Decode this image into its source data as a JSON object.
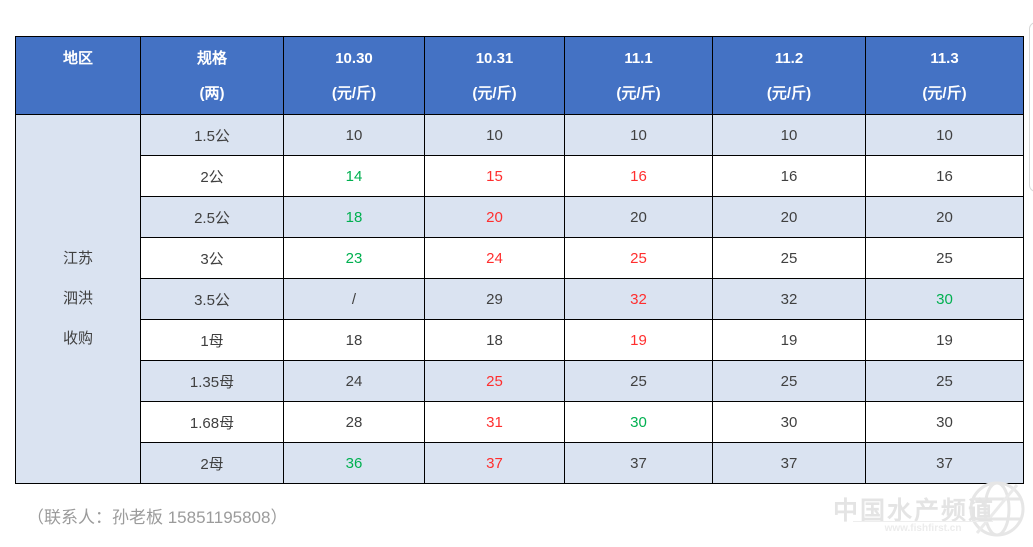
{
  "table": {
    "header": {
      "region": {
        "line1": "地区",
        "line2": ""
      },
      "spec": {
        "line1": "规格",
        "line2": "(两)"
      },
      "dates": [
        {
          "line1": "10.30",
          "line2": "(元/斤)"
        },
        {
          "line1": "10.31",
          "line2": "(元/斤)"
        },
        {
          "line1": "11.1",
          "line2": "(元/斤)"
        },
        {
          "line1": "11.2",
          "line2": "(元/斤)"
        },
        {
          "line1": "11.3",
          "line2": "(元/斤)"
        }
      ]
    },
    "region_lines": [
      "江苏",
      "泗洪",
      "收购"
    ],
    "rows": [
      {
        "spec": "1.5公",
        "values": [
          {
            "v": "10",
            "c": "dark"
          },
          {
            "v": "10",
            "c": "dark"
          },
          {
            "v": "10",
            "c": "dark"
          },
          {
            "v": "10",
            "c": "dark"
          },
          {
            "v": "10",
            "c": "dark"
          }
        ]
      },
      {
        "spec": "2公",
        "values": [
          {
            "v": "14",
            "c": "green"
          },
          {
            "v": "15",
            "c": "red"
          },
          {
            "v": "16",
            "c": "red"
          },
          {
            "v": "16",
            "c": "dark"
          },
          {
            "v": "16",
            "c": "dark"
          }
        ]
      },
      {
        "spec": "2.5公",
        "values": [
          {
            "v": "18",
            "c": "green"
          },
          {
            "v": "20",
            "c": "red"
          },
          {
            "v": "20",
            "c": "dark"
          },
          {
            "v": "20",
            "c": "dark"
          },
          {
            "v": "20",
            "c": "dark"
          }
        ]
      },
      {
        "spec": "3公",
        "values": [
          {
            "v": "23",
            "c": "green"
          },
          {
            "v": "24",
            "c": "red"
          },
          {
            "v": "25",
            "c": "red"
          },
          {
            "v": "25",
            "c": "dark"
          },
          {
            "v": "25",
            "c": "dark"
          }
        ]
      },
      {
        "spec": "3.5公",
        "values": [
          {
            "v": "/",
            "c": "dark"
          },
          {
            "v": "29",
            "c": "dark"
          },
          {
            "v": "32",
            "c": "red"
          },
          {
            "v": "32",
            "c": "dark"
          },
          {
            "v": "30",
            "c": "green"
          }
        ]
      },
      {
        "spec": "1母",
        "values": [
          {
            "v": "18",
            "c": "dark"
          },
          {
            "v": "18",
            "c": "dark"
          },
          {
            "v": "19",
            "c": "red"
          },
          {
            "v": "19",
            "c": "dark"
          },
          {
            "v": "19",
            "c": "dark"
          }
        ]
      },
      {
        "spec": "1.35母",
        "values": [
          {
            "v": "24",
            "c": "dark"
          },
          {
            "v": "25",
            "c": "red"
          },
          {
            "v": "25",
            "c": "dark"
          },
          {
            "v": "25",
            "c": "dark"
          },
          {
            "v": "25",
            "c": "dark"
          }
        ]
      },
      {
        "spec": "1.68母",
        "values": [
          {
            "v": "28",
            "c": "dark"
          },
          {
            "v": "31",
            "c": "red"
          },
          {
            "v": "30",
            "c": "green"
          },
          {
            "v": "30",
            "c": "dark"
          },
          {
            "v": "30",
            "c": "dark"
          }
        ]
      },
      {
        "spec": "2母",
        "values": [
          {
            "v": "36",
            "c": "green"
          },
          {
            "v": "37",
            "c": "red"
          },
          {
            "v": "37",
            "c": "dark"
          },
          {
            "v": "37",
            "c": "dark"
          },
          {
            "v": "37",
            "c": "dark"
          }
        ]
      }
    ]
  },
  "footer": {
    "contact": "（联系人：孙老板 15851195808）"
  },
  "watermark": {
    "title": "中国水产频道",
    "url": "www.fishfirst.cn"
  },
  "colors": {
    "header_bg": "#4472c4",
    "alt_row_bg": "#dae3f1",
    "price_up": "#ff2e2e",
    "price_down": "#00b050",
    "text": "#404040"
  }
}
